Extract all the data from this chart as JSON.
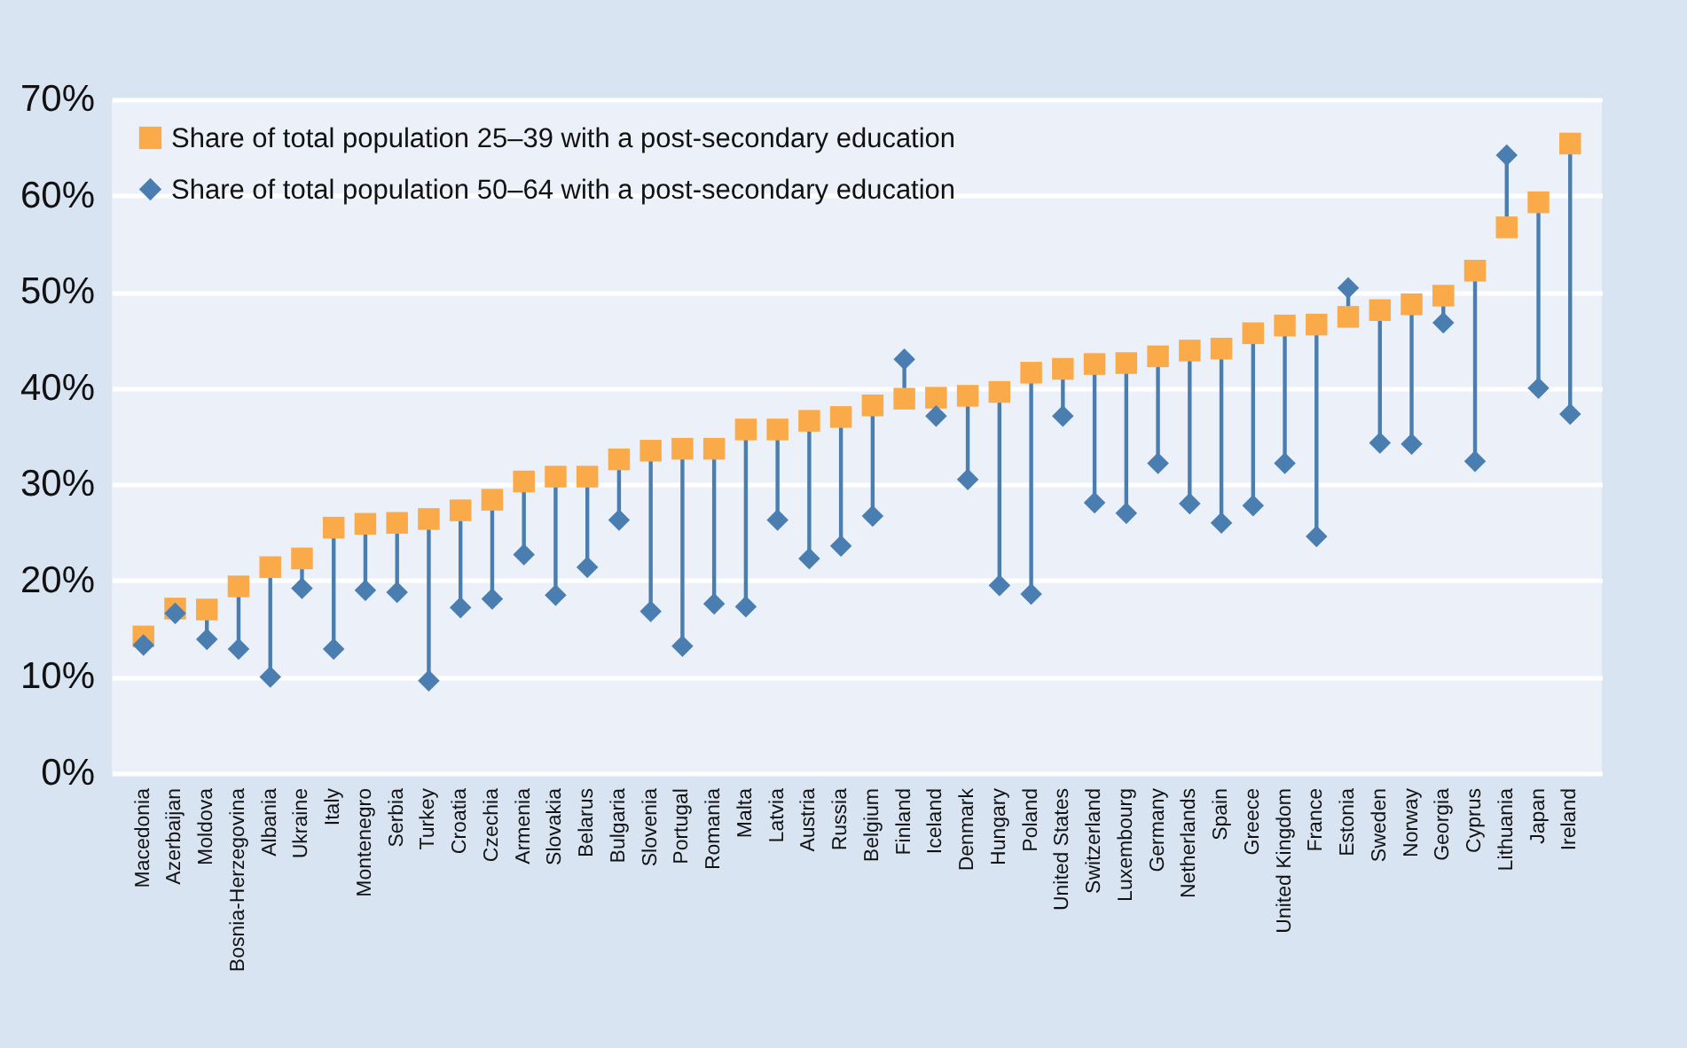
{
  "chart_data": {
    "type": "scatter",
    "categories": [
      "Macedonia",
      "Azerbaijan",
      "Moldova",
      "Bosnia-Herzegovina",
      "Albania",
      "Ukraine",
      "Italy",
      "Montenegro",
      "Serbia",
      "Turkey",
      "Croatia",
      "Czechia",
      "Armenia",
      "Slovakia",
      "Belarus",
      "Bulgaria",
      "Slovenia",
      "Portugal",
      "Romania",
      "Malta",
      "Latvia",
      "Austria",
      "Russia",
      "Belgium",
      "Finland",
      "Iceland",
      "Denmark",
      "Hungary",
      "Poland",
      "United States",
      "Switzerland",
      "Luxembourg",
      "Germany",
      "Netherlands",
      "Spain",
      "Greece",
      "United Kingdom",
      "France",
      "Estonia",
      "Sweden",
      "Norway",
      "Georgia",
      "Cyprus",
      "Lithuania",
      "Japan",
      "Ireland"
    ],
    "series": [
      {
        "name": "Share of total population 25–39 with a post-secondary education",
        "color": "#fbaa4a",
        "marker": "square",
        "values": [
          14.2,
          17.1,
          17,
          19.4,
          21.4,
          22.3,
          25.5,
          25.9,
          26,
          26.4,
          27.3,
          28.4,
          30.3,
          30.8,
          30.8,
          32.6,
          33.5,
          33.7,
          33.7,
          35.7,
          35.7,
          36.6,
          37,
          38.2,
          38.9,
          39,
          39.2,
          39.6,
          41.6,
          42,
          42.5,
          42.6,
          43.3,
          43.9,
          44.1,
          45.7,
          46.5,
          46.6,
          47.4,
          48.1,
          48.7,
          49.6,
          52.2,
          56.7,
          59.3,
          65.4
        ]
      },
      {
        "name": "Share of total population 50–64 with a post-secondary education",
        "color": "#4a7eb0",
        "marker": "diamond",
        "values": [
          13.3,
          16.6,
          13.9,
          12.9,
          10,
          19.2,
          12.9,
          19,
          18.8,
          9.6,
          17.2,
          18.1,
          22.7,
          18.5,
          21.4,
          26.3,
          16.8,
          13.2,
          17.6,
          17.3,
          26.3,
          22.3,
          23.6,
          26.7,
          43,
          37.1,
          30.5,
          19.5,
          18.6,
          37.1,
          28.1,
          27,
          32.2,
          28,
          26,
          27.8,
          32.2,
          24.6,
          50.4,
          34.3,
          34.2,
          46.8,
          32.4,
          64.2,
          40,
          37.3
        ]
      }
    ],
    "ylim": [
      0,
      70
    ],
    "yticks": [
      {
        "value": 0,
        "label": "0%"
      },
      {
        "value": 10,
        "label": "10%"
      },
      {
        "value": 20,
        "label": "20%"
      },
      {
        "value": 30,
        "label": "30%"
      },
      {
        "value": 40,
        "label": "40%"
      },
      {
        "value": 50,
        "label": "50%"
      },
      {
        "value": 60,
        "label": "60%"
      },
      {
        "value": 70,
        "label": "70%"
      }
    ],
    "grid": "y",
    "legend": "top left"
  }
}
